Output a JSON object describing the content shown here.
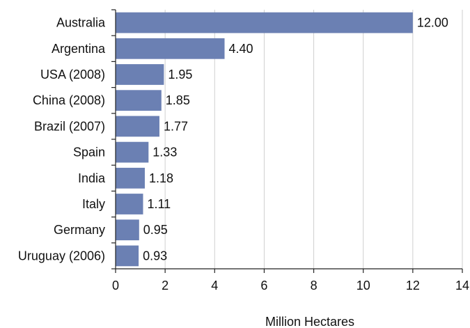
{
  "chart_data": {
    "type": "bar",
    "orientation": "horizontal",
    "categories": [
      "Australia",
      "Argentina",
      "USA (2008)",
      "China (2008)",
      "Brazil (2007)",
      "Spain",
      "India",
      "Italy",
      "Germany",
      "Uruguay (2006)"
    ],
    "values": [
      12.0,
      4.4,
      1.95,
      1.85,
      1.77,
      1.33,
      1.18,
      1.11,
      0.95,
      0.93
    ],
    "value_labels": [
      "12.00",
      "4.40",
      "1.95",
      "1.85",
      "1.77",
      "1.33",
      "1.18",
      "1.11",
      "0.95",
      "0.93"
    ],
    "title": "",
    "xlabel": "Million Hectares",
    "ylabel": "",
    "xlim": [
      0,
      14
    ],
    "xticks": [
      0,
      2,
      4,
      6,
      8,
      10,
      12,
      14
    ],
    "grid": "vertical",
    "bar_color": "#6b80b3"
  }
}
